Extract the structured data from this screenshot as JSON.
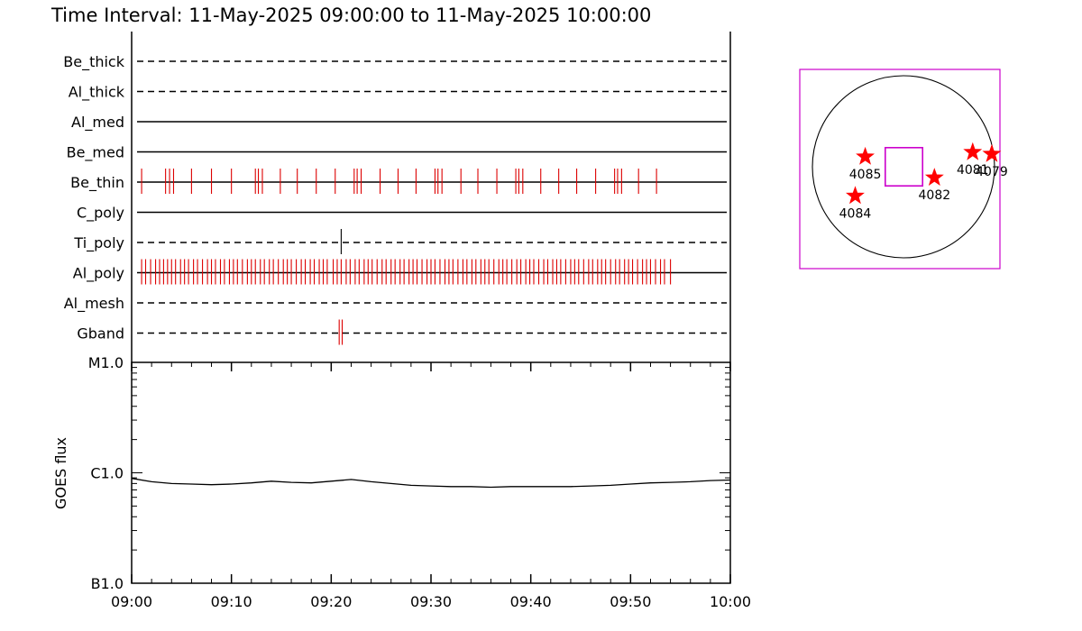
{
  "title": "Time Interval: 11-May-2025 09:00:00 to 11-May-2025 10:00:00",
  "colors": {
    "axis": "#000000",
    "event_mark": "#dd0000",
    "star": "#ff0000",
    "fov_box": "#cc00cc"
  },
  "chart_data": [
    {
      "type": "timeline",
      "description_role": "XRT filter usage per filter channel",
      "time_units": "minutes after 09:00",
      "x_range": [
        0,
        60
      ],
      "filters": [
        {
          "name": "Be_thick",
          "line_style": "dashed",
          "events": []
        },
        {
          "name": "Al_thick",
          "line_style": "dashed",
          "events": []
        },
        {
          "name": "Al_med",
          "line_style": "solid",
          "events": []
        },
        {
          "name": "Be_med",
          "line_style": "solid",
          "events": []
        },
        {
          "name": "Be_thin",
          "line_style": "solid",
          "events": [
            1.0,
            3.4,
            3.8,
            4.2,
            6.0,
            8.0,
            10.0,
            12.4,
            12.7,
            13.1,
            14.9,
            16.6,
            18.5,
            20.4,
            22.3,
            22.6,
            23.0,
            24.9,
            26.7,
            28.5,
            30.4,
            30.7,
            31.1,
            33.0,
            34.7,
            36.6,
            38.5,
            38.8,
            39.2,
            41.0,
            42.8,
            44.6,
            46.5,
            48.4,
            48.7,
            49.1,
            50.8,
            52.6
          ]
        },
        {
          "name": "C_poly",
          "line_style": "solid",
          "events": []
        },
        {
          "name": "Ti_poly",
          "line_style": "dashed",
          "events": [
            21.0
          ]
        },
        {
          "name": "Al_poly",
          "line_style": "solid",
          "events": [
            1.0,
            1.4,
            1.9,
            2.4,
            2.8,
            3.2,
            3.6,
            4.0,
            4.4,
            4.9,
            5.3,
            5.7,
            6.2,
            6.6,
            7.1,
            7.6,
            8.0,
            8.4,
            8.9,
            9.3,
            9.8,
            10.2,
            10.6,
            11.1,
            11.6,
            12.0,
            12.4,
            12.9,
            13.3,
            13.8,
            14.2,
            14.7,
            15.2,
            15.6,
            16.0,
            16.5,
            17.0,
            17.4,
            17.9,
            18.3,
            18.8,
            19.2,
            19.6,
            20.2,
            20.6,
            21.0,
            21.5,
            21.9,
            22.4,
            22.8,
            23.3,
            23.7,
            24.1,
            24.6,
            25.1,
            25.5,
            26.0,
            26.4,
            26.9,
            27.3,
            27.8,
            28.2,
            28.6,
            29.1,
            29.6,
            30.0,
            30.4,
            30.9,
            31.4,
            31.8,
            32.2,
            32.7,
            33.2,
            33.6,
            34.1,
            34.5,
            35.0,
            35.4,
            35.8,
            36.3,
            36.8,
            37.2,
            37.6,
            38.1,
            38.6,
            39.0,
            39.5,
            39.9,
            40.3,
            40.8,
            41.3,
            41.7,
            42.2,
            42.6,
            43.0,
            43.5,
            44.0,
            44.4,
            44.8,
            45.3,
            45.8,
            46.2,
            46.7,
            47.1,
            47.5,
            48.0,
            48.5,
            48.9,
            49.4,
            49.8,
            50.2,
            50.7,
            51.2,
            51.6,
            52.0,
            52.5,
            53.0,
            53.4,
            54.0
          ]
        },
        {
          "name": "Al_mesh",
          "line_style": "dashed",
          "events": []
        },
        {
          "name": "Gband",
          "line_style": "dashed",
          "events": [
            20.8,
            21.1
          ]
        }
      ]
    },
    {
      "type": "line",
      "ylabel": "GOES flux",
      "y_scale": "log",
      "y_range": [
        1e-07,
        1e-05
      ],
      "y_tick_labels": [
        {
          "value": 1e-05,
          "label": "M1.0"
        },
        {
          "value": 1e-06,
          "label": "C1.0"
        },
        {
          "value": 1e-07,
          "label": "B1.0"
        }
      ],
      "x_range": [
        0,
        60
      ],
      "x_tick_labels": [
        "09:00",
        "09:10",
        "09:20",
        "09:30",
        "09:40",
        "09:50",
        "10:00"
      ],
      "series": [
        {
          "x": [
            0,
            2,
            4,
            6,
            8,
            10,
            12,
            14,
            16,
            18,
            20,
            22,
            24,
            26,
            28,
            30,
            32,
            34,
            36,
            38,
            40,
            42,
            44,
            46,
            48,
            50,
            52,
            54,
            56,
            58,
            60
          ],
          "y": [
            8.9e-07,
            8.3e-07,
            8e-07,
            7.9e-07,
            7.8e-07,
            7.9e-07,
            8.1e-07,
            8.4e-07,
            8.2e-07,
            8.1e-07,
            8.4e-07,
            8.7e-07,
            8.3e-07,
            8e-07,
            7.7e-07,
            7.6e-07,
            7.5e-07,
            7.5e-07,
            7.4e-07,
            7.5e-07,
            7.5e-07,
            7.5e-07,
            7.5e-07,
            7.6e-07,
            7.7e-07,
            7.9e-07,
            8.1e-07,
            8.2e-07,
            8.3e-07,
            8.5e-07,
            8.6e-07
          ]
        }
      ]
    },
    {
      "type": "scatter",
      "role": "solar disk map with active regions",
      "units": "solar radii (disk center origin, +y north)",
      "x_range": [
        -1.05,
        1.05
      ],
      "y_range": [
        -1.05,
        1.05
      ],
      "points": [
        {
          "label": "4085",
          "x": -0.42,
          "y": 0.11
        },
        {
          "label": "4084",
          "x": -0.53,
          "y": -0.32
        },
        {
          "label": "4082",
          "x": 0.34,
          "y": -0.12
        },
        {
          "label": "4081",
          "x": 0.76,
          "y": 0.16
        },
        {
          "label": "4079",
          "x": 0.97,
          "y": 0.14
        }
      ],
      "fov_box": {
        "x": [
          -0.2,
          0.21
        ],
        "y": [
          -0.21,
          0.21
        ]
      }
    }
  ]
}
